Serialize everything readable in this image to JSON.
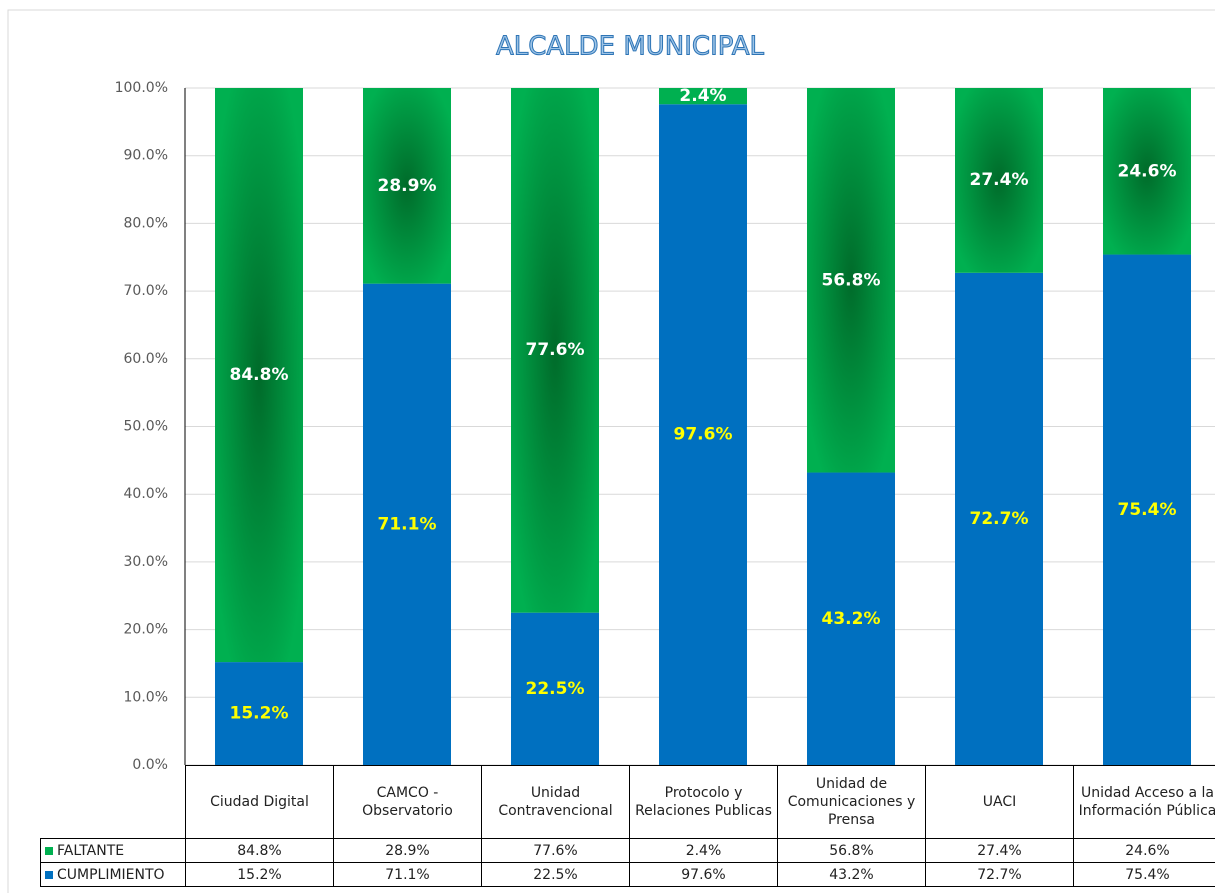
{
  "chart_data": {
    "type": "stacked_bar",
    "title": "ALCALDE MUNICIPAL",
    "categories": [
      "Ciudad Digital",
      "CAMCO - Observatorio",
      "Unidad Contravencional",
      "Protocolo y Relaciones Publicas",
      "Unidad de Comunicaciones y Prensa",
      "UACI",
      "Unidad Acceso a la Información Pública"
    ],
    "series": [
      {
        "name": "CUMPLIMIENTO",
        "color": "#0070c0",
        "values": [
          15.2,
          71.1,
          22.5,
          97.6,
          43.2,
          72.7,
          75.4
        ],
        "value_labels": [
          "15.2%",
          "71.1%",
          "22.5%",
          "97.6%",
          "43.2%",
          "72.7%",
          "75.4%"
        ]
      },
      {
        "name": "FALTANTE",
        "color": "#00b050",
        "values": [
          84.8,
          28.9,
          77.6,
          2.4,
          56.8,
          27.4,
          24.6
        ],
        "value_labels": [
          "84.8%",
          "28.9%",
          "77.6%",
          "2.4%",
          "56.8%",
          "27.4%",
          "24.6%"
        ]
      }
    ],
    "ylim": [
      0,
      100
    ],
    "yticks": [
      {
        "value": 0,
        "label": "0.0%"
      },
      {
        "value": 10,
        "label": "10.0%"
      },
      {
        "value": 20,
        "label": "20.0%"
      },
      {
        "value": 30,
        "label": "30.0%"
      },
      {
        "value": 40,
        "label": "40.0%"
      },
      {
        "value": 50,
        "label": "50.0%"
      },
      {
        "value": 60,
        "label": "60.0%"
      },
      {
        "value": 70,
        "label": "70.0%"
      },
      {
        "value": 80,
        "label": "80.0%"
      },
      {
        "value": 90,
        "label": "90.0%"
      },
      {
        "value": 100,
        "label": "100.0%"
      }
    ],
    "grid": true,
    "data_table": true
  }
}
